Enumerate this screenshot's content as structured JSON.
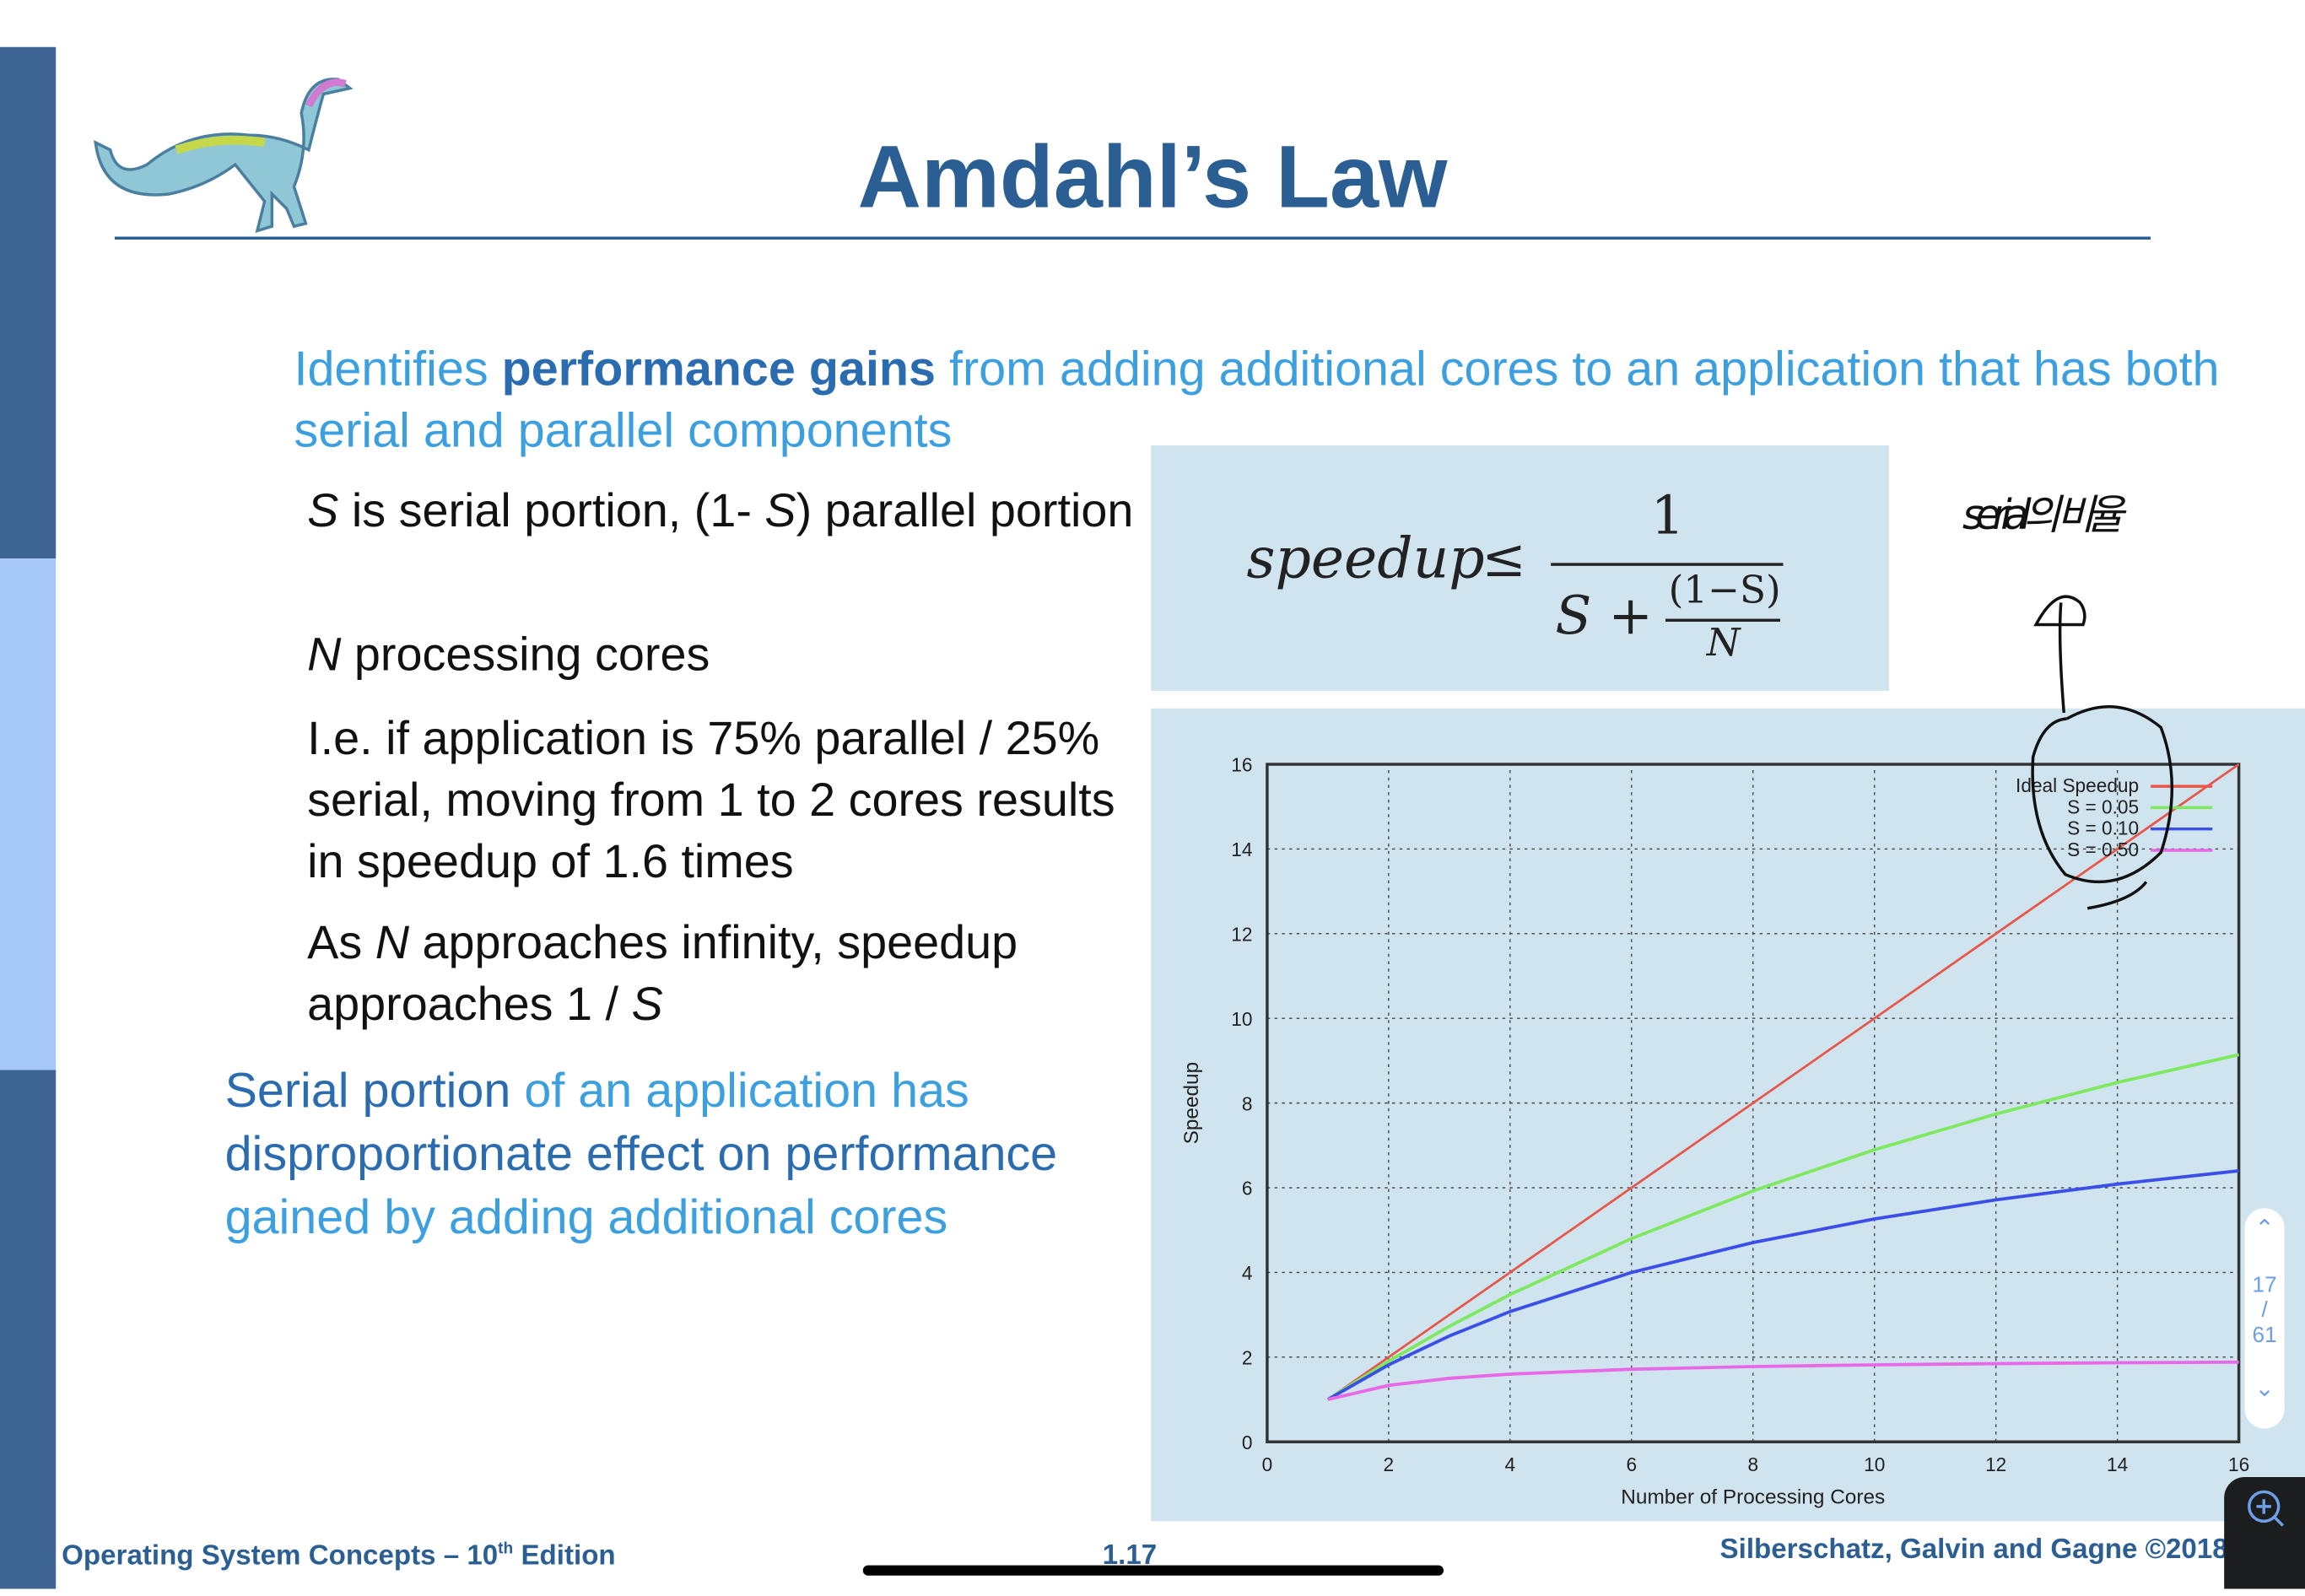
{
  "slide": {
    "title": "Amdahl’s Law",
    "intro": {
      "pre": "Identifies ",
      "bold": "performance gains",
      "post": " from adding additional cores to an application that has both serial and parallel components"
    },
    "bullets": [
      {
        "parts": [
          {
            "t": "S",
            "i": true
          },
          {
            "t": " is serial portion, (1- "
          },
          {
            "t": "S",
            "i": true
          },
          {
            "t": ") parallel portion"
          }
        ]
      },
      {
        "parts": [
          {
            "t": "N",
            "i": true
          },
          {
            "t": " processing cores"
          }
        ]
      },
      {
        "parts": [
          {
            "t": "I.e. if application is 75% parallel / 25% serial, moving from 1 to 2 cores results in speedup of 1.6 times"
          }
        ]
      },
      {
        "parts": [
          {
            "t": "As "
          },
          {
            "t": "N",
            "i": true
          },
          {
            "t": " approaches infinity, speedup approaches 1 / "
          },
          {
            "t": "S",
            "i": true
          }
        ]
      }
    ],
    "conclusion": {
      "dark1": "Serial portion",
      "light1": " of an application has ",
      "dark2": "disproportionate  effect on performance",
      "light2": " gained by adding additional cores"
    },
    "formula": {
      "lhs": "speedup",
      "rel": "≤",
      "num": "1",
      "den_s": "S +",
      "frac_num": "(1−S)",
      "frac_den": "N"
    },
    "annotation": {
      "text": "serial의 비율"
    }
  },
  "footer": {
    "left_pre": "Operating System Concepts – 10",
    "left_sup": "th",
    "left_post": " Edition",
    "page": "1.17",
    "right": "Silberschatz, Galvin and Gagne ©2018"
  },
  "viewer": {
    "current_page": "17",
    "separator": "/",
    "total_pages": "61",
    "up_icon": "chevron-up",
    "down_icon": "chevron-down",
    "zoom_icon": "zoom-in"
  },
  "colors": {
    "title": "#2b5f94",
    "accent_light": "#3b9fe0",
    "accent_dark": "#2b6cb0",
    "sidebar": "#3f6595",
    "panel": "#cfe4ef"
  },
  "chart_data": {
    "type": "line",
    "xlabel": "Number of Processing Cores",
    "ylabel": "Speedup",
    "xlim": [
      0,
      16
    ],
    "ylim": [
      0,
      16
    ],
    "xticks": [
      0,
      2,
      4,
      6,
      8,
      10,
      12,
      14,
      16
    ],
    "yticks": [
      0,
      2,
      4,
      6,
      8,
      10,
      12,
      14,
      16
    ],
    "grid": true,
    "legend": "top-right",
    "x": [
      1,
      2,
      3,
      4,
      6,
      8,
      10,
      12,
      14,
      16
    ],
    "series": [
      {
        "name": "Ideal Speedup",
        "color": "#e8574a",
        "values": [
          1,
          2,
          3,
          4,
          6,
          8,
          10,
          12,
          14,
          16
        ]
      },
      {
        "name": "S = 0.05",
        "color": "#7ee85e",
        "values": [
          1,
          1.905,
          2.727,
          3.478,
          4.8,
          5.926,
          6.897,
          7.742,
          8.485,
          9.143
        ]
      },
      {
        "name": "S = 0.10",
        "color": "#3b4fe8",
        "values": [
          1,
          1.818,
          2.5,
          3.077,
          4,
          4.706,
          5.263,
          5.714,
          6.087,
          6.4
        ]
      },
      {
        "name": "S = 0.50",
        "color": "#e868e8",
        "values": [
          1,
          1.333,
          1.5,
          1.6,
          1.714,
          1.778,
          1.818,
          1.846,
          1.867,
          1.882
        ]
      }
    ]
  }
}
